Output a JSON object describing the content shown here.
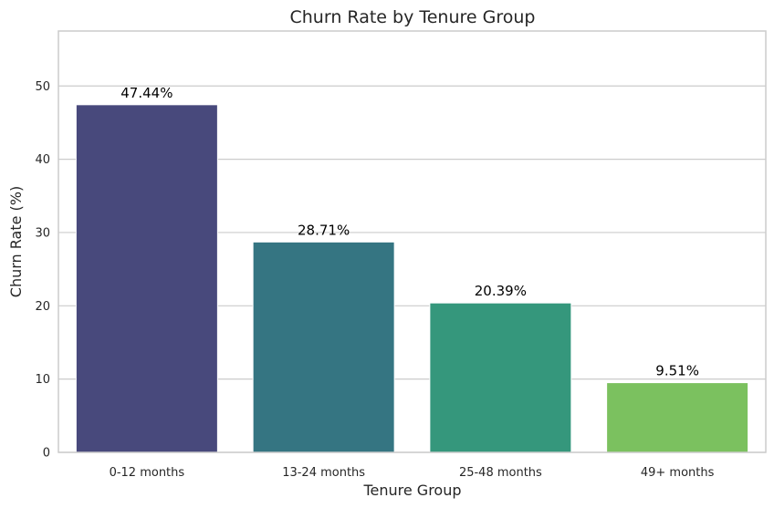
{
  "chart_data": {
    "type": "bar",
    "title": "Churn Rate by Tenure Group",
    "xlabel": "Tenure Group",
    "ylabel": "Churn Rate (%)",
    "categories": [
      "0-12 months",
      "13-24 months",
      "25-48 months",
      "49+ months"
    ],
    "values": [
      47.44,
      28.71,
      20.39,
      9.51
    ],
    "data_labels": [
      "47.44%",
      "28.71%",
      "20.39%",
      "9.51%"
    ],
    "ylim": [
      0,
      57.5
    ],
    "yticks": [
      0,
      10,
      20,
      30,
      40,
      50
    ],
    "grid": "horizontal",
    "colors": [
      "#48497c",
      "#357582",
      "#35977c",
      "#7bc15f"
    ],
    "gridline_color": "#cccccc",
    "frame_color": "#cccccc"
  }
}
